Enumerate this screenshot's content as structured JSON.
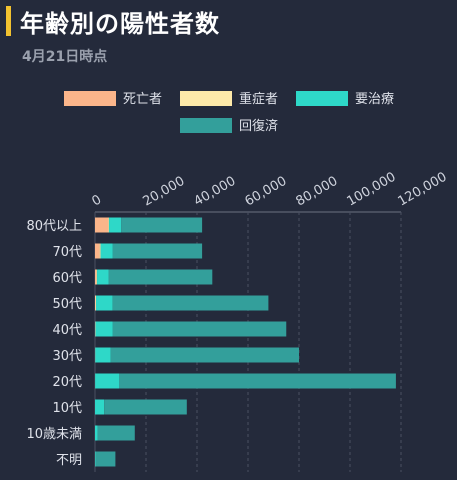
{
  "header": {
    "title": "年齢別の陽性者数",
    "date": "4月21日時点"
  },
  "colors": {
    "accent": "#f2c230",
    "deaths": "#fbb58a",
    "severe": "#fde9a9",
    "treatment": "#2ed8c8",
    "recovered": "#339f9b",
    "background": "#242a3b"
  },
  "chart_data": {
    "type": "bar",
    "orientation": "horizontal",
    "stacked": true,
    "categories": [
      "80代以上",
      "70代",
      "60代",
      "50代",
      "40代",
      "30代",
      "20代",
      "10代",
      "10歳未満",
      "不明"
    ],
    "series": [
      {
        "name": "死亡者",
        "color": "#fbb58a",
        "values": [
          5200,
          1800,
          500,
          200,
          100,
          50,
          30,
          0,
          0,
          50
        ]
      },
      {
        "name": "重症者",
        "color": "#fde9a9",
        "values": [
          300,
          400,
          300,
          200,
          100,
          50,
          20,
          0,
          0,
          0
        ]
      },
      {
        "name": "要治療",
        "color": "#2ed8c8",
        "values": [
          4800,
          4800,
          4500,
          6500,
          6800,
          6000,
          9500,
          3600,
          1000,
          300
        ]
      },
      {
        "name": "回復済",
        "color": "#339f9b",
        "values": [
          31700,
          35000,
          40700,
          61100,
          68000,
          73900,
          108450,
          32400,
          14600,
          7650
        ]
      }
    ],
    "xaxis": {
      "ticks": [
        "0",
        "20,000",
        "40,000",
        "60,000",
        "80,000",
        "100,000",
        "120,000"
      ],
      "range": [
        0,
        120000
      ],
      "grid": true,
      "label_rotation": -30
    },
    "legend": {
      "placement": "top"
    }
  }
}
